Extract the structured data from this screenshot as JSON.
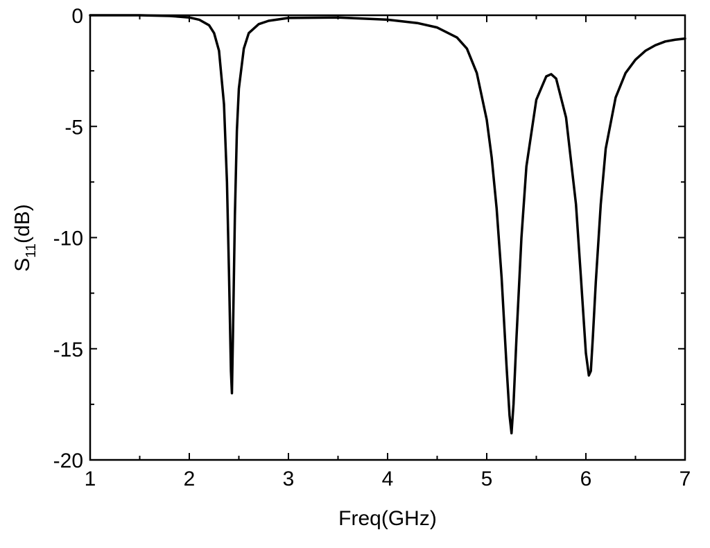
{
  "chart_data": {
    "type": "line",
    "xlabel": "Freq(GHz)",
    "ylabel": {
      "main": "S",
      "subscript": "11",
      "unit": "(dB)"
    },
    "xlim": [
      1,
      7
    ],
    "ylim": [
      -20,
      0
    ],
    "x_ticks": [
      1,
      2,
      3,
      4,
      5,
      6,
      7
    ],
    "x_tick_labels": [
      "1",
      "2",
      "3",
      "4",
      "5",
      "6",
      "7"
    ],
    "y_ticks": [
      0,
      -5,
      -10,
      -15,
      -20
    ],
    "y_tick_labels": [
      "0",
      "-5",
      "-10",
      "-15",
      "-20"
    ],
    "grid": false,
    "series": [
      {
        "color": "#000000",
        "x": [
          1.0,
          1.5,
          1.8,
          2.0,
          2.1,
          2.2,
          2.25,
          2.3,
          2.35,
          2.38,
          2.4,
          2.42,
          2.43,
          2.44,
          2.46,
          2.48,
          2.5,
          2.55,
          2.6,
          2.7,
          2.8,
          3.0,
          3.5,
          4.0,
          4.3,
          4.5,
          4.7,
          4.8,
          4.9,
          5.0,
          5.05,
          5.1,
          5.15,
          5.2,
          5.23,
          5.25,
          5.27,
          5.3,
          5.35,
          5.4,
          5.5,
          5.6,
          5.65,
          5.7,
          5.8,
          5.9,
          5.95,
          6.0,
          6.03,
          6.05,
          6.07,
          6.1,
          6.15,
          6.2,
          6.3,
          6.4,
          6.5,
          6.6,
          6.7,
          6.8,
          6.9,
          7.0
        ],
        "y": [
          0.0,
          0.0,
          -0.03,
          -0.1,
          -0.2,
          -0.45,
          -0.8,
          -1.6,
          -4.0,
          -7.5,
          -11.5,
          -16.0,
          -17.0,
          -14.5,
          -9.0,
          -5.2,
          -3.3,
          -1.5,
          -0.8,
          -0.4,
          -0.25,
          -0.12,
          -0.1,
          -0.2,
          -0.35,
          -0.55,
          -1.0,
          -1.5,
          -2.6,
          -4.7,
          -6.4,
          -8.7,
          -11.8,
          -15.8,
          -18.0,
          -18.8,
          -17.5,
          -14.5,
          -10.0,
          -6.8,
          -3.8,
          -2.75,
          -2.65,
          -2.85,
          -4.6,
          -8.5,
          -11.8,
          -15.2,
          -16.2,
          -16.0,
          -14.5,
          -12.0,
          -8.5,
          -6.0,
          -3.7,
          -2.6,
          -2.0,
          -1.6,
          -1.35,
          -1.18,
          -1.1,
          -1.05
        ]
      }
    ]
  }
}
